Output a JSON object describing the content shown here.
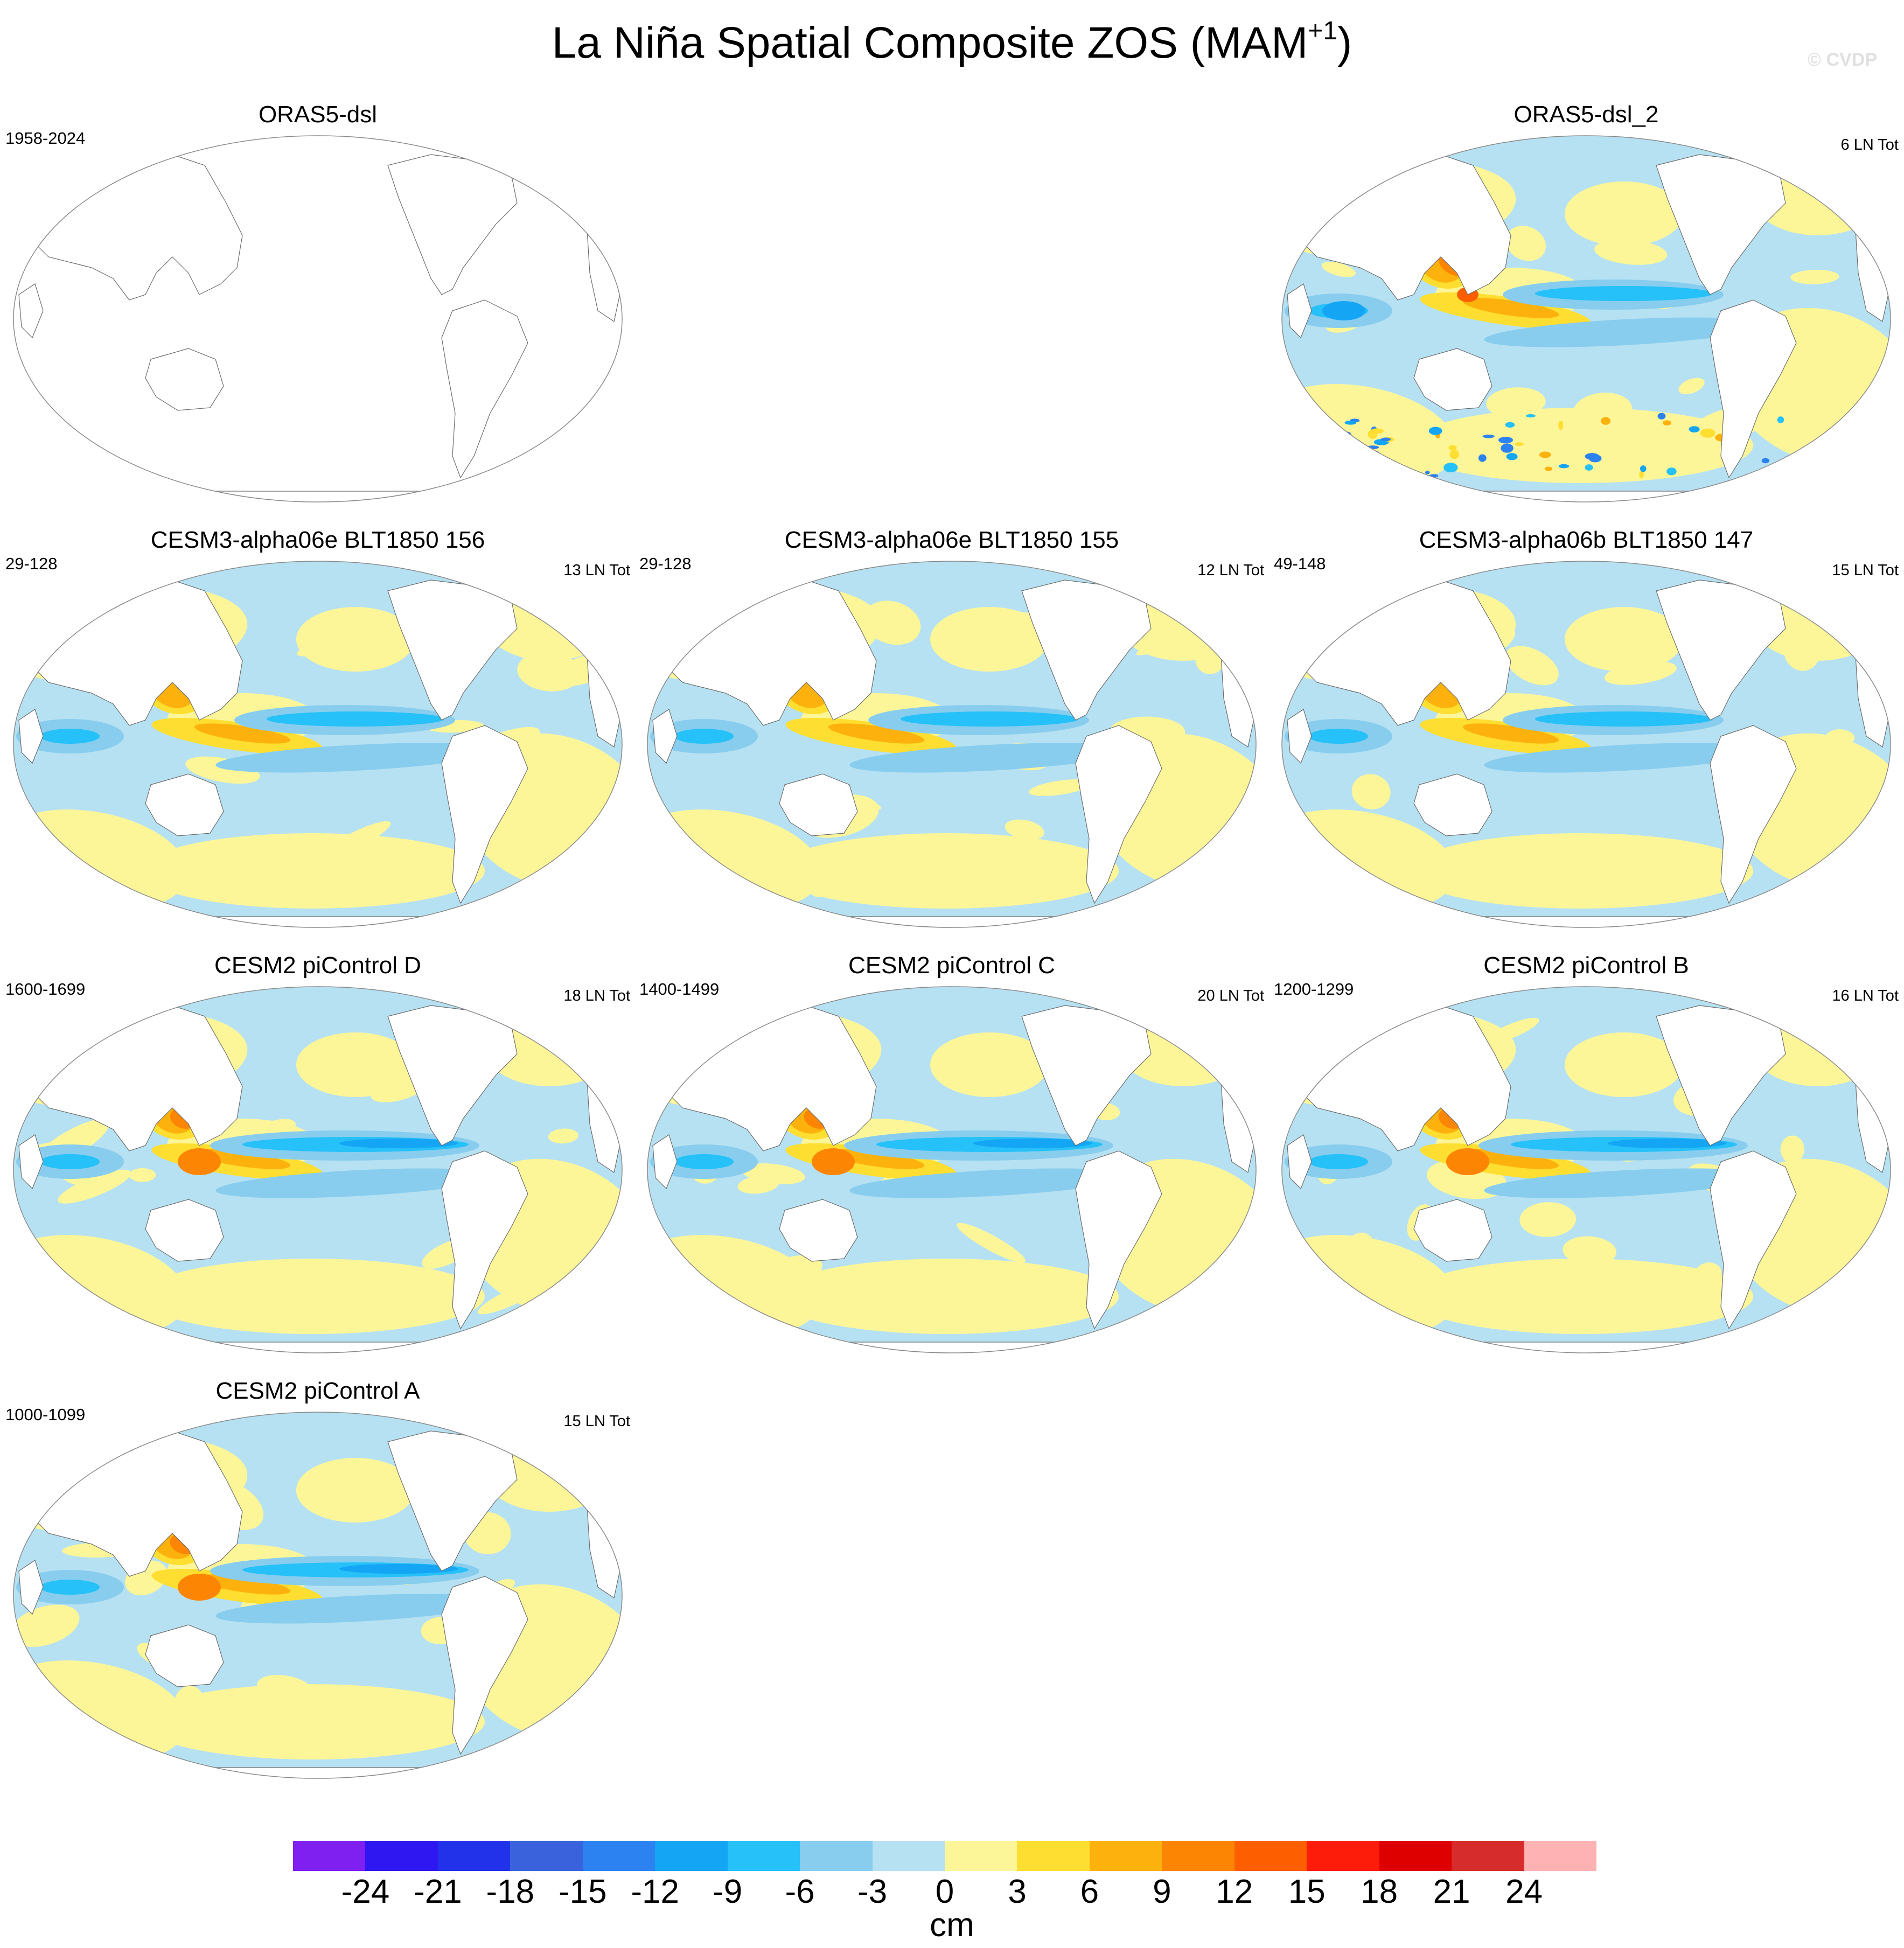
{
  "title": {
    "main": "La Niña Spatial Composite ZOS (MAM",
    "superscript": "+1",
    "close": ")"
  },
  "copyright": "© CVDP",
  "panels": [
    {
      "id": "p1",
      "title": "ORAS5-dsl",
      "years": "1958-2024",
      "count": "",
      "empty": true
    },
    {
      "id": "p2",
      "title": "ORAS5-dsl_2",
      "years": "",
      "count": "6 LN Tot",
      "empty": false,
      "style": "noisy"
    },
    {
      "id": "p3",
      "title": "CESM3-alpha06e BLT1850 156",
      "years": "29-128",
      "count": "13 LN Tot",
      "empty": false,
      "style": "model"
    },
    {
      "id": "p4",
      "title": "CESM3-alpha06e BLT1850 155",
      "years": "29-128",
      "count": "12 LN Tot",
      "empty": false,
      "style": "model"
    },
    {
      "id": "p5",
      "title": "CESM3-alpha06b BLT1850 147",
      "years": "49-148",
      "count": "15 LN Tot",
      "empty": false,
      "style": "model"
    },
    {
      "id": "p6",
      "title": "CESM2 piControl D",
      "years": "1600-1699",
      "count": "18 LN Tot",
      "empty": false,
      "style": "pic"
    },
    {
      "id": "p7",
      "title": "CESM2 piControl C",
      "years": "1400-1499",
      "count": "20 LN Tot",
      "empty": false,
      "style": "pic"
    },
    {
      "id": "p8",
      "title": "CESM2 piControl B",
      "years": "1200-1299",
      "count": "16 LN Tot",
      "empty": false,
      "style": "pic"
    },
    {
      "id": "p9",
      "title": "CESM2 piControl A",
      "years": "1000-1099",
      "count": "15 LN Tot",
      "empty": false,
      "style": "pic"
    }
  ],
  "colorbar": {
    "colors": [
      "#7f1ff0",
      "#2f17f2",
      "#2232ea",
      "#3a62dc",
      "#2c82f0",
      "#15a5f5",
      "#25c1f8",
      "#88cdee",
      "#b6e1f2",
      "#fdf699",
      "#fede30",
      "#fdb10d",
      "#fd8504",
      "#fd5e00",
      "#fd1b0a",
      "#de0000",
      "#d72c2c",
      "#feb2b4"
    ],
    "ticks": [
      "-24",
      "-21",
      "-18",
      "-15",
      "-12",
      "-9",
      "-6",
      "-3",
      "0",
      "3",
      "6",
      "9",
      "12",
      "15",
      "18",
      "21",
      "24"
    ],
    "unit": "cm"
  }
}
